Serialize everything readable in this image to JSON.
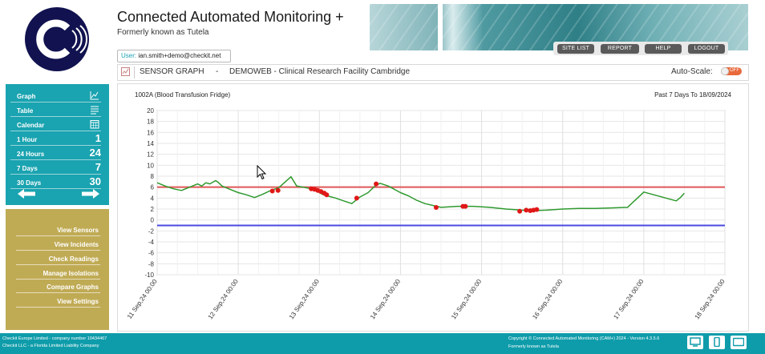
{
  "app": {
    "title": "Connected Automated Monitoring +",
    "subtitle": "Formerly known as Tutela"
  },
  "nav": {
    "buttons": [
      "SITE LIST",
      "REPORT",
      "HELP",
      "LOGOUT"
    ]
  },
  "user": {
    "label": "User:",
    "value": "ian.smith+demo@checkit.net"
  },
  "graph_header": {
    "title": "SENSOR GRAPH",
    "separator": "-",
    "site": "DEMOWEB - Clinical Research Facility Cambridge",
    "autoscale_label": "Auto-Scale:",
    "autoscale_state": "OFF"
  },
  "sidebar": {
    "items": [
      {
        "label": "Graph",
        "icon": "line-chart-icon"
      },
      {
        "label": "Table",
        "icon": "table-lines-icon"
      },
      {
        "label": "Calendar",
        "icon": "calendar-icon"
      },
      {
        "label": "1 Hour",
        "num": "1"
      },
      {
        "label": "24 Hours",
        "num": "24"
      },
      {
        "label": "7 Days",
        "num": "7"
      },
      {
        "label": "30 Days",
        "num": "30"
      }
    ],
    "links": [
      "View Sensors",
      "View Incidents",
      "Check Readings",
      "Manage Isolations",
      "Compare Graphs",
      "View Settings"
    ]
  },
  "chart_data": {
    "type": "line",
    "sensor_label": "1002A (Blood Transfusion Fridge)",
    "range_label": "Past 7 Days To 18/09/2024",
    "xlabel": "",
    "ylabel": "",
    "x_tick_labels": [
      "11 Sep,24 00:00",
      "12 Sep,24 00:00",
      "13 Sep,24 00:00",
      "14 Sep,24 00:00",
      "15 Sep,24 00:00",
      "16 Sep,24 00:00",
      "17 Sep,24 00:00",
      "18 Sep,24 00:00"
    ],
    "xlim": [
      0,
      7
    ],
    "ylim": [
      -10,
      20
    ],
    "y_ticks": [
      20,
      18,
      16,
      14,
      12,
      10,
      8,
      6,
      4,
      2,
      0,
      -2,
      -4,
      -6,
      -8,
      -10
    ],
    "grid": true,
    "upper_limit": 6,
    "lower_limit": -1,
    "colors": {
      "line": "#2e9a2e",
      "alarm": "#e01818",
      "upper": "#e05858",
      "lower": "#4a4ae0"
    },
    "series": [
      {
        "x": [
          0,
          0.1,
          0.2,
          0.3,
          0.4,
          0.5,
          0.55,
          0.6,
          0.65,
          0.72,
          0.75,
          0.8,
          0.9,
          1.0,
          1.1,
          1.2,
          1.3,
          1.4,
          1.5,
          1.65,
          1.72,
          1.8,
          1.9,
          1.95,
          2.0,
          2.05,
          2.1,
          2.2,
          2.3,
          2.4,
          2.5,
          2.6,
          2.7,
          2.75,
          2.85,
          3.0,
          3.1,
          3.2,
          3.3,
          3.5,
          3.7,
          3.9,
          4.1,
          4.3,
          4.6,
          4.8,
          5.0,
          5.2,
          5.4,
          5.6,
          5.8,
          6.0,
          6.2,
          6.4,
          6.45,
          6.5
        ],
        "y": [
          6.8,
          6.2,
          5.7,
          5.4,
          6.0,
          6.6,
          6.2,
          6.8,
          6.6,
          7.2,
          6.9,
          6.2,
          5.6,
          5.0,
          4.6,
          4.1,
          4.7,
          5.4,
          5.9,
          7.9,
          6.2,
          6.0,
          5.7,
          5.4,
          5.0,
          4.6,
          4.4,
          4.0,
          3.5,
          3.0,
          4.2,
          5.0,
          6.4,
          6.7,
          6.2,
          5.0,
          4.4,
          3.6,
          3.0,
          2.3,
          2.5,
          2.5,
          2.3,
          2.0,
          1.7,
          1.8,
          2.0,
          2.1,
          2.1,
          2.2,
          2.3,
          5.1,
          4.3,
          3.5,
          4.1,
          4.9
        ]
      }
    ],
    "alarm_points": [
      {
        "x": 1.42,
        "y": 5.3
      },
      {
        "x": 1.49,
        "y": 5.4
      },
      {
        "x": 1.9,
        "y": 5.7
      },
      {
        "x": 1.94,
        "y": 5.6
      },
      {
        "x": 1.98,
        "y": 5.4
      },
      {
        "x": 2.02,
        "y": 5.2
      },
      {
        "x": 2.06,
        "y": 4.9
      },
      {
        "x": 2.09,
        "y": 4.6
      },
      {
        "x": 2.46,
        "y": 4.0
      },
      {
        "x": 2.7,
        "y": 6.6
      },
      {
        "x": 3.44,
        "y": 2.3
      },
      {
        "x": 3.77,
        "y": 2.5
      },
      {
        "x": 3.8,
        "y": 2.5
      },
      {
        "x": 4.47,
        "y": 1.6
      },
      {
        "x": 4.55,
        "y": 1.8
      },
      {
        "x": 4.6,
        "y": 1.7
      },
      {
        "x": 4.64,
        "y": 1.8
      },
      {
        "x": 4.68,
        "y": 1.9
      }
    ]
  },
  "footer": {
    "left_line1": "Checkit Europe Limited - company number 10434467",
    "left_line2": "Checkit LLC - a Florida Limited Liability Company",
    "right_line1": "Copyright © Connected Automated Monitoring (CAM+) 2024 - Version 4.3.5.6",
    "right_line2": "Formerly known as Tutela"
  }
}
